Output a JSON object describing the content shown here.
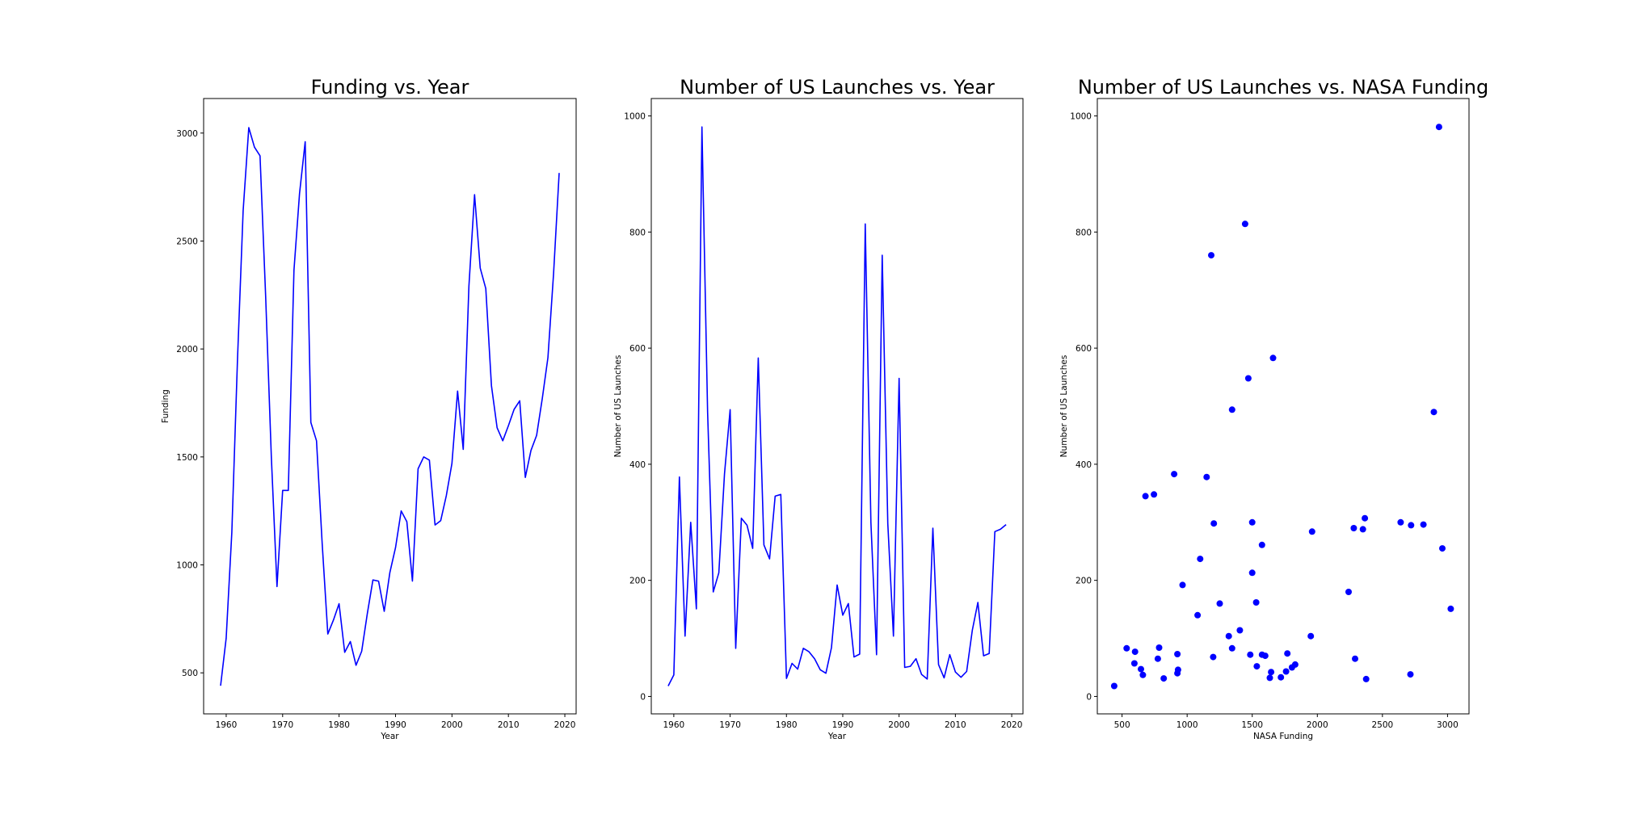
{
  "chart_data": [
    {
      "type": "line",
      "title": "Funding vs. Year",
      "xlabel": "Year",
      "ylabel": "Funding",
      "xlim": [
        1956,
        2022
      ],
      "ylim": [
        310,
        3160
      ],
      "xticks": [
        1960,
        1970,
        1980,
        1990,
        2000,
        2010,
        2020
      ],
      "yticks": [
        500,
        1000,
        1500,
        2000,
        2500,
        3000
      ],
      "color": "#0000ff",
      "grid": false,
      "x": [
        1959,
        1960,
        1961,
        1962,
        1963,
        1964,
        1965,
        1966,
        1967,
        1968,
        1969,
        1970,
        1971,
        1972,
        1973,
        1974,
        1975,
        1976,
        1977,
        1978,
        1979,
        1980,
        1981,
        1982,
        1983,
        1984,
        1985,
        1986,
        1987,
        1988,
        1989,
        1990,
        1991,
        1992,
        1993,
        1994,
        1995,
        1996,
        1997,
        1998,
        1999,
        2000,
        2001,
        2002,
        2003,
        2004,
        2005,
        2006,
        2007,
        2008,
        2009,
        2010,
        2011,
        2012,
        2013,
        2014,
        2015,
        2016,
        2017,
        2018,
        2019
      ],
      "y": [
        440,
        660,
        1150,
        1950,
        2640,
        3025,
        2935,
        2895,
        2240,
        1500,
        900,
        1345,
        1345,
        2365,
        2720,
        2960,
        1660,
        1575,
        1100,
        680,
        745,
        820,
        595,
        645,
        535,
        600,
        775,
        930,
        925,
        785,
        965,
        1080,
        1250,
        1200,
        925,
        1445,
        1500,
        1485,
        1185,
        1205,
        1320,
        1470,
        1805,
        1535,
        2290,
        2715,
        2375,
        2280,
        1830,
        1635,
        1575,
        1645,
        1720,
        1760,
        1405,
        1530,
        1600,
        1770,
        1960,
        2350,
        2815
      ]
    },
    {
      "type": "line",
      "title": "Number of US Launches vs. Year",
      "xlabel": "Year",
      "ylabel": "Number of US Launches",
      "xlim": [
        1956,
        2022
      ],
      "ylim": [
        -30,
        1030
      ],
      "xticks": [
        1960,
        1970,
        1980,
        1990,
        2000,
        2010,
        2020
      ],
      "yticks": [
        0,
        200,
        400,
        600,
        800,
        1000
      ],
      "color": "#0000ff",
      "grid": false,
      "x": [
        1959,
        1960,
        1961,
        1962,
        1963,
        1964,
        1965,
        1966,
        1967,
        1968,
        1969,
        1970,
        1971,
        1972,
        1973,
        1974,
        1975,
        1976,
        1977,
        1978,
        1979,
        1980,
        1981,
        1982,
        1983,
        1984,
        1985,
        1986,
        1987,
        1988,
        1989,
        1990,
        1991,
        1992,
        1993,
        1994,
        1995,
        1996,
        1997,
        1998,
        1999,
        2000,
        2001,
        2002,
        2003,
        2004,
        2005,
        2006,
        2007,
        2008,
        2009,
        2010,
        2011,
        2012,
        2013,
        2014,
        2015,
        2016,
        2017,
        2018,
        2019
      ],
      "y": [
        18,
        37,
        378,
        104,
        300,
        151,
        981,
        490,
        180,
        213,
        383,
        494,
        83,
        307,
        295,
        255,
        583,
        261,
        237,
        345,
        348,
        31,
        57,
        47,
        83,
        77,
        65,
        46,
        40,
        84,
        192,
        140,
        160,
        68,
        73,
        814,
        300,
        72,
        760,
        298,
        104,
        548,
        50,
        52,
        65,
        38,
        30,
        290,
        55,
        32,
        72,
        42,
        33,
        43,
        114,
        162,
        70,
        74,
        284,
        288,
        296
      ]
    },
    {
      "type": "scatter",
      "title": "Number of US Launches vs. NASA Funding",
      "xlabel": "NASA Funding",
      "ylabel": "Number of US Launches",
      "xlim": [
        310,
        3165
      ],
      "ylim": [
        -30,
        1030
      ],
      "xticks": [
        500,
        1000,
        1500,
        2000,
        2500,
        3000
      ],
      "yticks": [
        0,
        200,
        400,
        600,
        800,
        1000
      ],
      "color": "#0000ff",
      "grid": false,
      "x": [
        440,
        660,
        1150,
        1950,
        2640,
        3025,
        2935,
        2895,
        2240,
        1500,
        900,
        1345,
        1345,
        2365,
        2720,
        2960,
        1660,
        1575,
        1100,
        680,
        745,
        820,
        595,
        645,
        535,
        600,
        775,
        930,
        925,
        785,
        965,
        1080,
        1250,
        1200,
        925,
        1445,
        1500,
        1485,
        1185,
        1205,
        1320,
        1470,
        1805,
        1535,
        2290,
        2715,
        2375,
        2280,
        1830,
        1635,
        1575,
        1645,
        1720,
        1760,
        1405,
        1530,
        1600,
        1770,
        1960,
        2350,
        2815
      ],
      "y": [
        18,
        37,
        378,
        104,
        300,
        151,
        981,
        490,
        180,
        213,
        383,
        494,
        83,
        307,
        295,
        255,
        583,
        261,
        237,
        345,
        348,
        31,
        57,
        47,
        83,
        77,
        65,
        46,
        40,
        84,
        192,
        140,
        160,
        68,
        73,
        814,
        300,
        72,
        760,
        298,
        104,
        548,
        50,
        52,
        65,
        38,
        30,
        290,
        55,
        32,
        72,
        42,
        33,
        43,
        114,
        162,
        70,
        74,
        284,
        288,
        296
      ]
    }
  ]
}
